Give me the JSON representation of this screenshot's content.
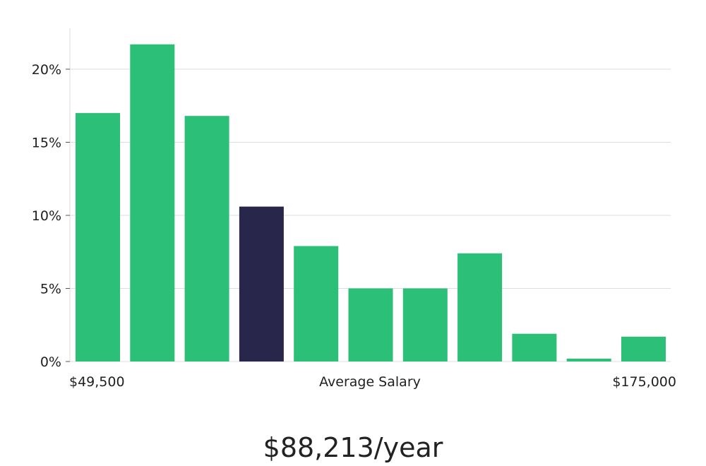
{
  "chart_data": {
    "type": "bar",
    "title": "",
    "xlabel": "Average Salary",
    "ylabel": "",
    "range_min_label": "$49,500",
    "range_max_label": "$175,000",
    "yticks": [
      0,
      5,
      10,
      15,
      20
    ],
    "ytick_labels": [
      "0%",
      "5%",
      "10%",
      "15%",
      "20%"
    ],
    "ylim": [
      0,
      23
    ],
    "values": [
      17.0,
      21.7,
      16.8,
      10.6,
      7.9,
      5.0,
      5.0,
      7.4,
      1.9,
      0.2,
      1.7
    ],
    "highlight_index": 3,
    "grid": true,
    "average_salary_label": "$88,213/year"
  },
  "colors": {
    "bar": "#2bbf78",
    "highlight": "#28264a",
    "grid": "#dddddd",
    "axis": "#dddddd"
  }
}
